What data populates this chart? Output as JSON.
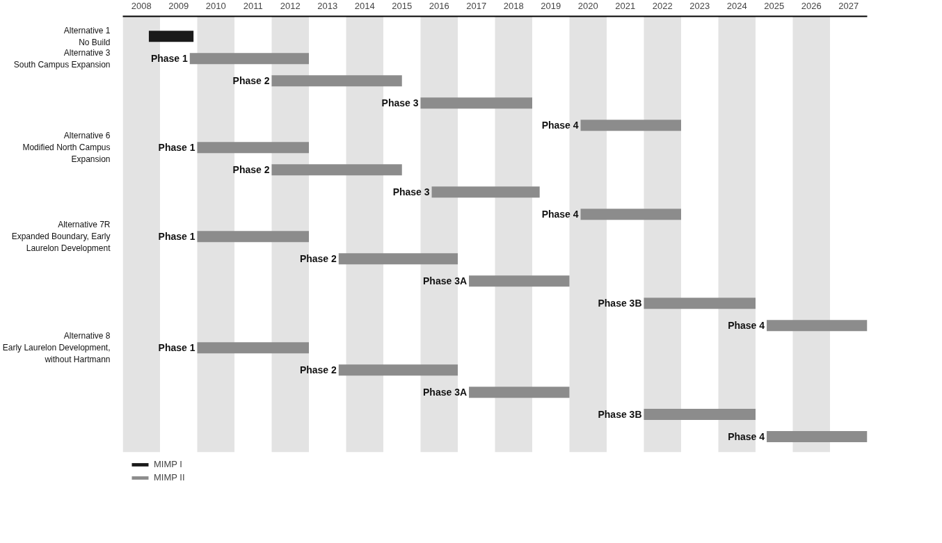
{
  "chart_data": {
    "type": "bar",
    "orientation": "horizontal",
    "categories": [
      "Alternative 1\nNo Build",
      "Alternative 3\nSouth Campus Expansion",
      null,
      null,
      null,
      "Alternative 6\nModified North Campus Expansion",
      null,
      null,
      null,
      "Alternative 7R\nExpanded Boundary, Early Laurelon Development",
      null,
      null,
      null,
      null,
      "Alternative 8\nEarly Laurelon Development, without Hartmann",
      null,
      null,
      null,
      null
    ],
    "series": [
      {
        "name": "MIMP I",
        "color": "#1a1a1a",
        "base": [
          2008.2,
          null,
          null,
          null,
          null,
          null,
          null,
          null,
          null,
          null,
          null,
          null,
          null,
          null,
          null,
          null,
          null,
          null,
          null
        ],
        "values": [
          1.2,
          null,
          null,
          null,
          null,
          null,
          null,
          null,
          null,
          null,
          null,
          null,
          null,
          null,
          null,
          null,
          null,
          null,
          null
        ]
      },
      {
        "name": "MIMP II",
        "color": "#8c8c8c",
        "base": [
          null,
          2009.3,
          2011.5,
          2015.5,
          2019.8,
          2009.5,
          2011.5,
          2015.8,
          2019.8,
          2009.5,
          2013.3,
          2016.8,
          2021.5,
          2024.8,
          2009.5,
          2013.3,
          2016.8,
          2021.5,
          2024.8
        ],
        "values": [
          null,
          3.2,
          3.5,
          3.0,
          2.7,
          3.0,
          3.5,
          2.9,
          2.7,
          3.0,
          3.2,
          2.7,
          3.0,
          2.7,
          3.0,
          3.2,
          2.7,
          3.0,
          2.7
        ],
        "value_labels": [
          null,
          "Phase 1",
          "Phase 2",
          "Phase 3",
          "Phase 4",
          "Phase 1",
          "Phase 2",
          "Phase 3",
          "Phase 4",
          "Phase 1",
          "Phase 2",
          "Phase 3A",
          "Phase 3B",
          "Phase 4",
          "Phase 1",
          "Phase 2",
          "Phase 3A",
          "Phase 3B",
          "Phase 4"
        ]
      }
    ],
    "xlim": [
      2007.5,
      2027.5
    ],
    "xticks": [
      2008,
      2009,
      2010,
      2011,
      2012,
      2013,
      2014,
      2015,
      2016,
      2017,
      2018,
      2019,
      2020,
      2021,
      2022,
      2023,
      2024,
      2025,
      2026,
      2027
    ],
    "legend": "bottom",
    "bands": [
      {
        "axis": "x",
        "from": 2007.5,
        "to": 2008.5,
        "color": "#e3e3e3"
      },
      {
        "axis": "x",
        "from": 2009.5,
        "to": 2010.5,
        "color": "#e3e3e3"
      },
      {
        "axis": "x",
        "from": 2011.5,
        "to": 2012.5,
        "color": "#e3e3e3"
      },
      {
        "axis": "x",
        "from": 2013.5,
        "to": 2014.5,
        "color": "#e3e3e3"
      },
      {
        "axis": "x",
        "from": 2015.5,
        "to": 2016.5,
        "color": "#e3e3e3"
      },
      {
        "axis": "x",
        "from": 2017.5,
        "to": 2018.5,
        "color": "#e3e3e3"
      },
      {
        "axis": "x",
        "from": 2019.5,
        "to": 2020.5,
        "color": "#e3e3e3"
      },
      {
        "axis": "x",
        "from": 2021.5,
        "to": 2022.5,
        "color": "#e3e3e3"
      },
      {
        "axis": "x",
        "from": 2023.5,
        "to": 2024.5,
        "color": "#e3e3e3"
      },
      {
        "axis": "x",
        "from": 2025.5,
        "to": 2026.5,
        "color": "#e3e3e3"
      }
    ]
  }
}
